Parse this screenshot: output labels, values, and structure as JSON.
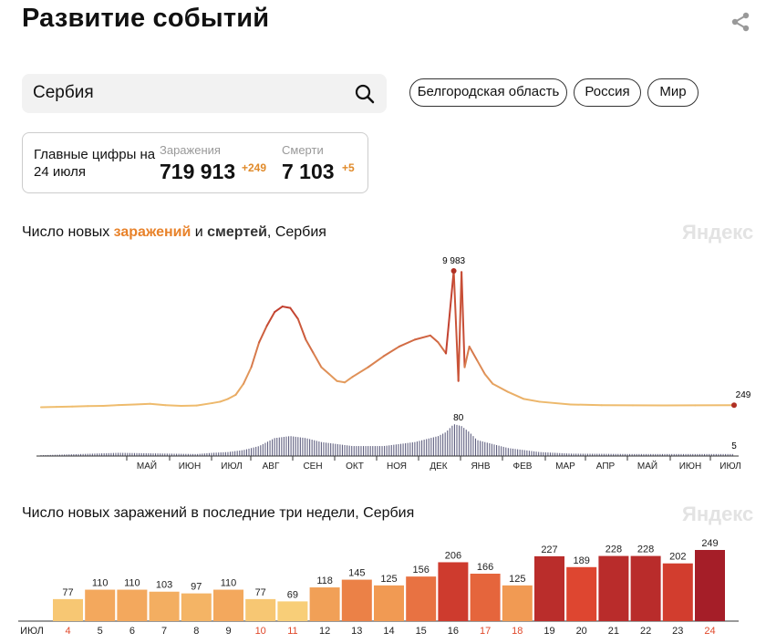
{
  "header": {
    "title": "Развитие событий"
  },
  "search": {
    "value": "Сербия"
  },
  "regions": [
    "Белгородская область",
    "Россия",
    "Мир"
  ],
  "summary": {
    "label": "Главные цифры на 24 июля",
    "infections_caption": "Заражения",
    "infections_value": "719 913",
    "infections_delta": "+249",
    "deaths_caption": "Смерти",
    "deaths_value": "7 103",
    "deaths_delta": "+5"
  },
  "chart1": {
    "title_prefix": "Число новых ",
    "title_highlight1": "заражений",
    "title_mid": " и ",
    "title_highlight2": "смертей",
    "title_suffix": ", Сербия",
    "watermark": "Яндекс"
  },
  "chart2": {
    "title": "Число новых заражений в последние три недели, Сербия",
    "watermark": "Яндекс"
  },
  "colors": {
    "accent": "#e8822a",
    "line_low": "#f0c070",
    "line_high": "#c0392b",
    "deaths": "#606080"
  },
  "chart_data": [
    {
      "type": "line",
      "series": [
        {
          "name": "заражения",
          "x": [
            0,
            10,
            20,
            30,
            40,
            50,
            60,
            70,
            80,
            90,
            100,
            110,
            115,
            120,
            125,
            130,
            135,
            140,
            145,
            150,
            155,
            160,
            165,
            170,
            175,
            180,
            185,
            190,
            195,
            200,
            210,
            220,
            230,
            240,
            250,
            255,
            260,
            265,
            268,
            270,
            272,
            275,
            280,
            285,
            290,
            300,
            310,
            320,
            340,
            360,
            380,
            400,
            420,
            445
          ],
          "values": [
            100,
            120,
            150,
            180,
            200,
            260,
            300,
            350,
            250,
            200,
            220,
            400,
            500,
            700,
            1000,
            1800,
            3000,
            4800,
            6000,
            7000,
            7400,
            7300,
            6500,
            5000,
            4000,
            3000,
            2500,
            2000,
            1900,
            2300,
            3000,
            3800,
            4500,
            5000,
            5300,
            4800,
            4000,
            9983,
            2000,
            9900,
            3000,
            4500,
            3500,
            2500,
            1800,
            1200,
            700,
            500,
            300,
            250,
            240,
            230,
            240,
            249
          ]
        },
        {
          "name": "смерти",
          "x": [
            0,
            50,
            100,
            110,
            120,
            130,
            140,
            150,
            160,
            170,
            180,
            190,
            200,
            220,
            240,
            255,
            260,
            265,
            270,
            275,
            280,
            300,
            320,
            340,
            380,
            445
          ],
          "values": [
            2,
            8,
            5,
            8,
            10,
            15,
            25,
            45,
            50,
            45,
            35,
            30,
            25,
            25,
            35,
            50,
            60,
            80,
            75,
            60,
            40,
            20,
            10,
            6,
            5,
            5
          ]
        }
      ],
      "point_labels": [
        "9 983",
        "249",
        "80",
        "5"
      ],
      "x_tick_labels": [
        "МАЙ",
        "ИЮН",
        "ИЮЛ",
        "АВГ",
        "СЕН",
        "ОКТ",
        "НОЯ",
        "ДЕК",
        "ЯНВ",
        "ФЕВ",
        "МАР",
        "АПР",
        "МАЙ",
        "ИЮН",
        "ИЮЛ"
      ]
    },
    {
      "type": "bar",
      "month_label": "ИЮЛ",
      "categories": [
        "4",
        "5",
        "6",
        "7",
        "8",
        "9",
        "10",
        "11",
        "12",
        "13",
        "14",
        "15",
        "16",
        "17",
        "18",
        "19",
        "20",
        "21",
        "22",
        "23",
        "24"
      ],
      "values": [
        77,
        110,
        110,
        103,
        97,
        110,
        77,
        69,
        118,
        145,
        125,
        156,
        206,
        166,
        125,
        227,
        189,
        228,
        228,
        202,
        249
      ],
      "weekend": [
        true,
        false,
        false,
        false,
        false,
        false,
        true,
        true,
        false,
        false,
        false,
        false,
        false,
        true,
        true,
        false,
        false,
        false,
        false,
        false,
        true
      ]
    }
  ]
}
